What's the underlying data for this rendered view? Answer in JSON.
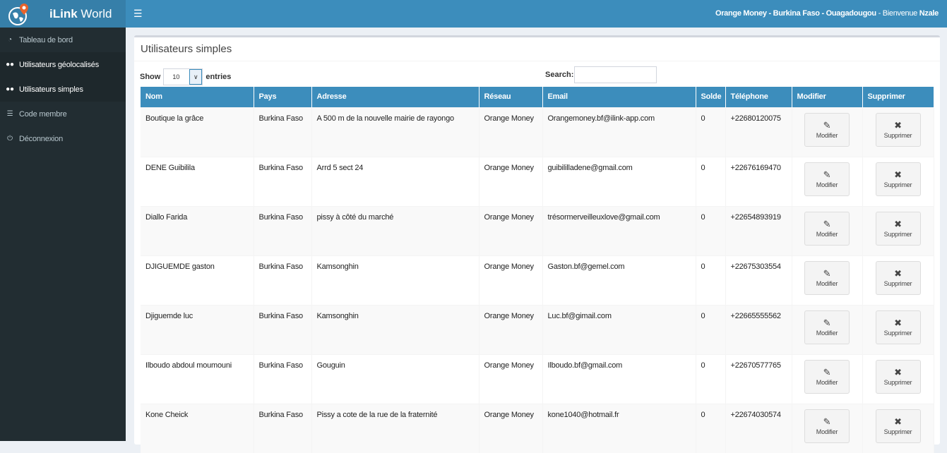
{
  "app": {
    "title_bold": "iLink",
    "title_rest": " World"
  },
  "header": {
    "context": "Orange Money - Burkina Faso - Ouagadougou",
    "welcome": " - Bienvenue ",
    "user": "Nzale"
  },
  "sidebar": {
    "items": [
      {
        "label": "Tableau de bord",
        "icon": "dashboard-icon",
        "active": false
      },
      {
        "label": "Utilisateurs géolocalisés",
        "icon": "users-icon",
        "active": true
      },
      {
        "label": "Utilisateurs simples",
        "icon": "users-icon",
        "active": true
      },
      {
        "label": "Code membre",
        "icon": "database-icon",
        "active": false
      },
      {
        "label": "Déconnexion",
        "icon": "power-icon",
        "active": false
      }
    ]
  },
  "page": {
    "title": "Utilisateurs simples"
  },
  "table_controls": {
    "show_label": "Show",
    "entries_value": "10",
    "entries_label": "entries",
    "search_label": "Search:",
    "search_value": ""
  },
  "table": {
    "columns": [
      "Nom",
      "Pays",
      "Adresse",
      "Réseau",
      "Email",
      "Solde",
      "Téléphone",
      "Modifier",
      "Supprimer"
    ],
    "edit_label": "Modifier",
    "delete_label": "Supprimer",
    "rows": [
      {
        "nom": "Boutique la grâce",
        "pays": "Burkina Faso",
        "adresse": "A 500 m de la nouvelle mairie de rayongo",
        "reseau": "Orange Money",
        "email": "Orangemoney.bf@ilink-app.com",
        "solde": "0",
        "telephone": "+22680120075"
      },
      {
        "nom": "DENE Guibilila",
        "pays": "Burkina Faso",
        "adresse": "Arrd 5 sect 24",
        "reseau": "Orange Money",
        "email": "guibililladene@gmail.com",
        "solde": "0",
        "telephone": "+22676169470"
      },
      {
        "nom": "Diallo Farida",
        "pays": "Burkina Faso",
        "adresse": "pissy à côté du marché",
        "reseau": "Orange Money",
        "email": "trésormerveilleuxlove@gmail.com",
        "solde": "0",
        "telephone": "+22654893919"
      },
      {
        "nom": "DJIGUEMDE gaston",
        "pays": "Burkina Faso",
        "adresse": "Kamsonghin",
        "reseau": "Orange Money",
        "email": "Gaston.bf@gemel.com",
        "solde": "0",
        "telephone": "+22675303554"
      },
      {
        "nom": "Djiguemde luc",
        "pays": "Burkina Faso",
        "adresse": "Kamsonghin",
        "reseau": "Orange Money",
        "email": "Luc.bf@gimail.com",
        "solde": "0",
        "telephone": "+22665555562"
      },
      {
        "nom": "Ilboudo abdoul moumouni",
        "pays": "Burkina Faso",
        "adresse": "Gouguin",
        "reseau": "Orange Money",
        "email": "Ilboudo.bf@gmail.com",
        "solde": "0",
        "telephone": "+22670577765"
      },
      {
        "nom": "Kone Cheick",
        "pays": "Burkina Faso",
        "adresse": "Pissy a cote de la rue de la fraternité",
        "reseau": "Orange Money",
        "email": "kone1040@hotmail.fr",
        "solde": "0",
        "telephone": "+22674030574"
      }
    ]
  },
  "colors": {
    "primary": "#3c8dbc",
    "sidebar": "#222d32",
    "logo_marker": "#e8632b"
  }
}
